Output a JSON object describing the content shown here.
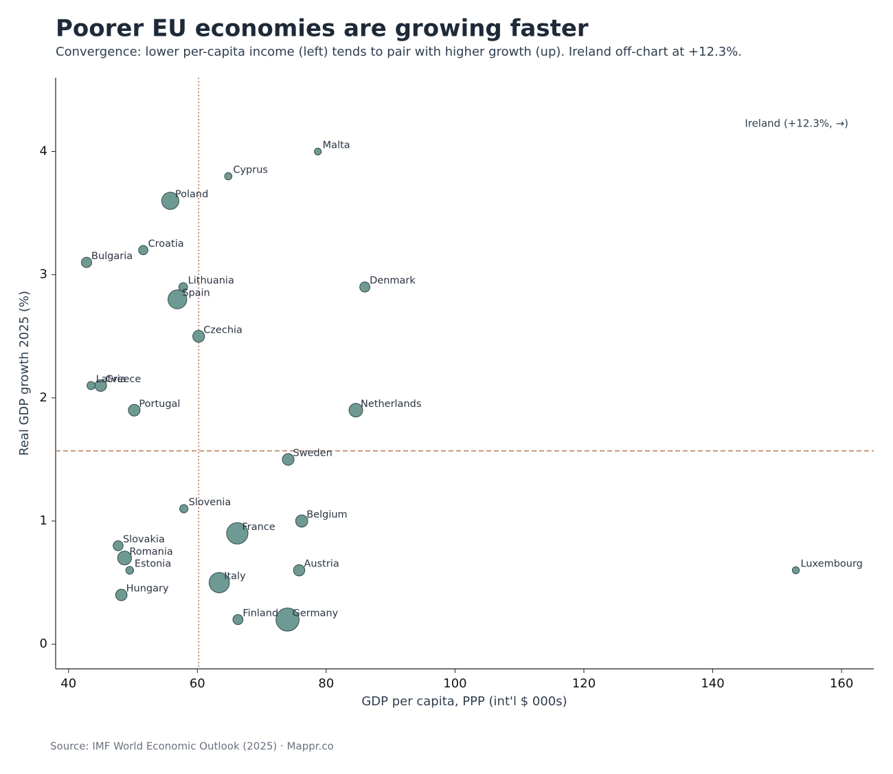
{
  "chart_data": {
    "type": "scatter",
    "title": "Poorer EU economies are growing faster",
    "subtitle": "Convergence: lower per-capita income (left) tends to pair with higher growth (up). Ireland off-chart at +12.3%.",
    "x_label": "GDP per capita, PPP (int'l $ 000s)",
    "y_label": "Real GDP growth 2025 (%)",
    "annotation": "Ireland (+12.3%, →)",
    "source": "Source: IMF World Economic Outlook (2025) · Mappr.co",
    "color": "#5f8f87",
    "line_color": "#b07a5a",
    "labels": [
      "Malta",
      "Cyprus",
      "Poland",
      "Croatia",
      "Bulgaria",
      "Lithuania",
      "Spain",
      "Denmark",
      "Czechia",
      "Latvia",
      "Greece",
      "Portugal",
      "Netherlands",
      "Sweden",
      "Slovenia",
      "Belgium",
      "France",
      "Slovakia",
      "Romania",
      "Estonia",
      "Austria",
      "Luxembourg",
      "Italy",
      "Hungary",
      "Finland",
      "Germany"
    ],
    "x": [
      78.7,
      64.8,
      55.8,
      51.6,
      42.8,
      57.8,
      56.9,
      86.0,
      60.2,
      43.5,
      45.0,
      50.2,
      84.6,
      74.1,
      57.9,
      76.2,
      66.2,
      47.7,
      48.7,
      49.5,
      75.8,
      152.9,
      63.4,
      48.2,
      66.3,
      74.0
    ],
    "values": [
      4.0,
      3.8,
      3.6,
      3.2,
      3.1,
      2.9,
      2.8,
      2.9,
      2.5,
      2.1,
      2.1,
      1.9,
      1.9,
      1.5,
      1.1,
      1.0,
      0.9,
      0.8,
      0.7,
      0.6,
      0.6,
      0.6,
      0.5,
      0.4,
      0.2,
      0.2
    ],
    "sizes": [
      0.55,
      0.9,
      37,
      3.9,
      6.4,
      2.9,
      48,
      5.9,
      10.9,
      1.9,
      10.4,
      10.4,
      18,
      10.5,
      2.1,
      12,
      68,
      5.4,
      19,
      1.4,
      9.1,
      0.66,
      59,
      9.6,
      5.6,
      84
    ],
    "vline": 60.2,
    "hline": 1.57,
    "xlim": [
      38,
      165
    ],
    "ylim": [
      -0.2,
      4.6
    ],
    "xticks": [
      40,
      60,
      80,
      100,
      120,
      140,
      160
    ],
    "yticks": [
      0,
      1,
      2,
      3,
      4
    ]
  }
}
